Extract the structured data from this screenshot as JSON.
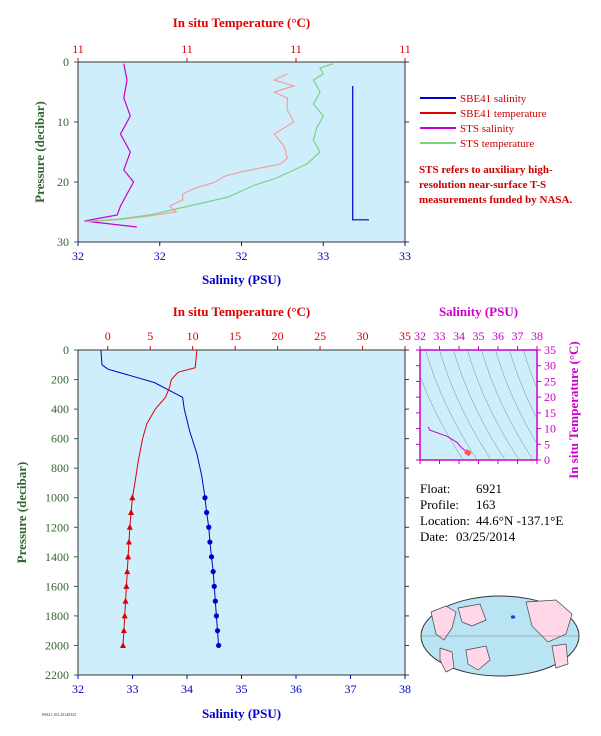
{
  "colors": {
    "panel_bg": "#cdeefa",
    "temp": "#dd0000",
    "salinity": "#0000cc",
    "sts_salinity": "#cc00cc",
    "sts_temp": "#7fd17f",
    "sbe_temp_light": "#f0a0a0",
    "pressure_axis": "#336633",
    "ts_axis": "#cc00cc"
  },
  "chart_data": [
    {
      "type": "line",
      "id": "near-surface",
      "top_title": "In situ Temperature (°C)",
      "top_ticks": [
        "11",
        "11",
        "11",
        "11"
      ],
      "xlabel": "Salinity (PSU)",
      "x_ticks": [
        "32",
        "32",
        "32",
        "33",
        "33"
      ],
      "ylabel": "Pressure (decibar)",
      "y_ticks": [
        0,
        10,
        20,
        30
      ],
      "ylim": [
        0,
        30
      ],
      "y_reversed": true,
      "legend": [
        "SBE41 salinity",
        "SBE41 temperature",
        "STS salinity",
        "STS temperature"
      ],
      "note": "STS refers to auxiliary high-resolution near-surface T-S measurements funded by NASA.",
      "series": [
        {
          "name": "SBE41 salinity",
          "points": [
            [
              0.84,
              4
            ],
            [
              0.84,
              26.3
            ],
            [
              0.89,
              26.3
            ]
          ]
        },
        {
          "name": "STS salinity",
          "points": [
            [
              0.14,
              0.3
            ],
            [
              0.15,
              3
            ],
            [
              0.14,
              6
            ],
            [
              0.16,
              9
            ],
            [
              0.13,
              12
            ],
            [
              0.16,
              15
            ],
            [
              0.14,
              18
            ],
            [
              0.17,
              20
            ],
            [
              0.15,
              22
            ],
            [
              0.13,
              24
            ],
            [
              0.12,
              25.5
            ],
            [
              0.02,
              26.5
            ],
            [
              0.18,
              27.5
            ]
          ]
        },
        {
          "name": "SBE41 temperature",
          "points": [
            [
              0.64,
              2
            ],
            [
              0.6,
              3
            ],
            [
              0.66,
              4
            ],
            [
              0.6,
              5
            ],
            [
              0.64,
              6
            ],
            [
              0.64,
              8
            ],
            [
              0.66,
              10
            ],
            [
              0.6,
              12
            ],
            [
              0.63,
              14
            ],
            [
              0.64,
              16
            ],
            [
              0.62,
              17
            ],
            [
              0.5,
              18.3
            ],
            [
              0.45,
              19
            ],
            [
              0.42,
              20
            ],
            [
              0.36,
              21
            ],
            [
              0.32,
              22
            ],
            [
              0.32,
              23
            ],
            [
              0.28,
              24
            ],
            [
              0.3,
              25
            ],
            [
              0.2,
              25.8
            ],
            [
              0.12,
              26.3
            ],
            [
              0.02,
              26.6
            ]
          ]
        },
        {
          "name": "STS temperature",
          "points": [
            [
              0.78,
              0.3
            ],
            [
              0.74,
              1
            ],
            [
              0.75,
              2
            ],
            [
              0.72,
              3
            ],
            [
              0.74,
              5
            ],
            [
              0.72,
              7
            ],
            [
              0.75,
              9
            ],
            [
              0.73,
              11
            ],
            [
              0.72,
              13
            ],
            [
              0.74,
              15
            ],
            [
              0.7,
              17
            ],
            [
              0.64,
              18.5
            ],
            [
              0.6,
              19.5
            ],
            [
              0.54,
              20.5
            ],
            [
              0.5,
              21.5
            ],
            [
              0.46,
              22.5
            ],
            [
              0.38,
              23.5
            ],
            [
              0.3,
              24.5
            ],
            [
              0.22,
              25.5
            ],
            [
              0.12,
              26.2
            ],
            [
              0.02,
              26.6
            ]
          ]
        }
      ]
    },
    {
      "type": "line",
      "id": "full-profile",
      "top_title": "In situ Temperature (°C)",
      "top_ticks": [
        0,
        5,
        10,
        15,
        20,
        25,
        30,
        35
      ],
      "xlabel": "Salinity (PSU)",
      "x_ticks": [
        32,
        33,
        34,
        35,
        36,
        37,
        38
      ],
      "ylabel": "Pressure (decibar)",
      "y_ticks": [
        0,
        200,
        400,
        600,
        800,
        1000,
        1200,
        1400,
        1600,
        1800,
        2000,
        2200
      ],
      "ylim": [
        0,
        2200
      ],
      "y_reversed": true,
      "series": [
        {
          "name": "salinity",
          "points": [
            [
              32.42,
              0
            ],
            [
              32.44,
              100
            ],
            [
              32.55,
              130
            ],
            [
              33.4,
              220
            ],
            [
              33.92,
              320
            ],
            [
              33.95,
              400
            ],
            [
              34.05,
              550
            ],
            [
              34.18,
              700
            ],
            [
              34.27,
              850
            ],
            [
              34.33,
              1000
            ]
          ],
          "markers": [
            [
              34.33,
              1000
            ],
            [
              34.36,
              1100
            ],
            [
              34.4,
              1200
            ],
            [
              34.42,
              1300
            ],
            [
              34.45,
              1400
            ],
            [
              34.48,
              1500
            ],
            [
              34.5,
              1600
            ],
            [
              34.52,
              1700
            ],
            [
              34.54,
              1800
            ],
            [
              34.56,
              1900
            ],
            [
              34.58,
              2000
            ]
          ]
        },
        {
          "name": "temperature",
          "points": [
            [
              10.5,
              0
            ],
            [
              10.3,
              120
            ],
            [
              8.3,
              150
            ],
            [
              7.5,
              200
            ],
            [
              7.3,
              250
            ],
            [
              6.8,
              320
            ],
            [
              5.6,
              400
            ],
            [
              4.6,
              500
            ],
            [
              4.1,
              600
            ],
            [
              3.6,
              750
            ],
            [
              3.2,
              900
            ],
            [
              2.9,
              1000
            ]
          ],
          "markers": [
            [
              2.9,
              1000
            ],
            [
              2.75,
              1100
            ],
            [
              2.6,
              1200
            ],
            [
              2.5,
              1300
            ],
            [
              2.4,
              1400
            ],
            [
              2.3,
              1500
            ],
            [
              2.2,
              1600
            ],
            [
              2.1,
              1700
            ],
            [
              2.0,
              1800
            ],
            [
              1.9,
              1900
            ],
            [
              1.8,
              2000
            ]
          ]
        }
      ]
    },
    {
      "type": "line",
      "id": "ts-diagram",
      "top_title": "Salinity (PSU)",
      "top_ticks": [
        32,
        33,
        34,
        35,
        36,
        37,
        38
      ],
      "ylabel": "In situ Temperature (°C)",
      "y_ticks": [
        0,
        5,
        10,
        15,
        20,
        25,
        30,
        35
      ],
      "xlim": [
        32,
        38
      ],
      "ylim": [
        0,
        35
      ],
      "series": [
        {
          "name": "T-S",
          "points": [
            [
              32.42,
              10.5
            ],
            [
              32.5,
              9.5
            ],
            [
              33.4,
              7.5
            ],
            [
              33.9,
              5.6
            ],
            [
              34.1,
              4.1
            ],
            [
              34.33,
              2.9
            ],
            [
              34.58,
              1.8
            ]
          ]
        }
      ]
    }
  ],
  "map": {
    "marker": "*"
  },
  "info": {
    "float_label": "Float:",
    "float_value": "6921",
    "profile_label": "Profile:",
    "profile_value": "163",
    "location_label": "Location:",
    "location_value": "44.6°N  -137.1°E",
    "date_label": "Date:",
    "date_value": "03/25/2014"
  },
  "footer": "F6921.163.20140325"
}
